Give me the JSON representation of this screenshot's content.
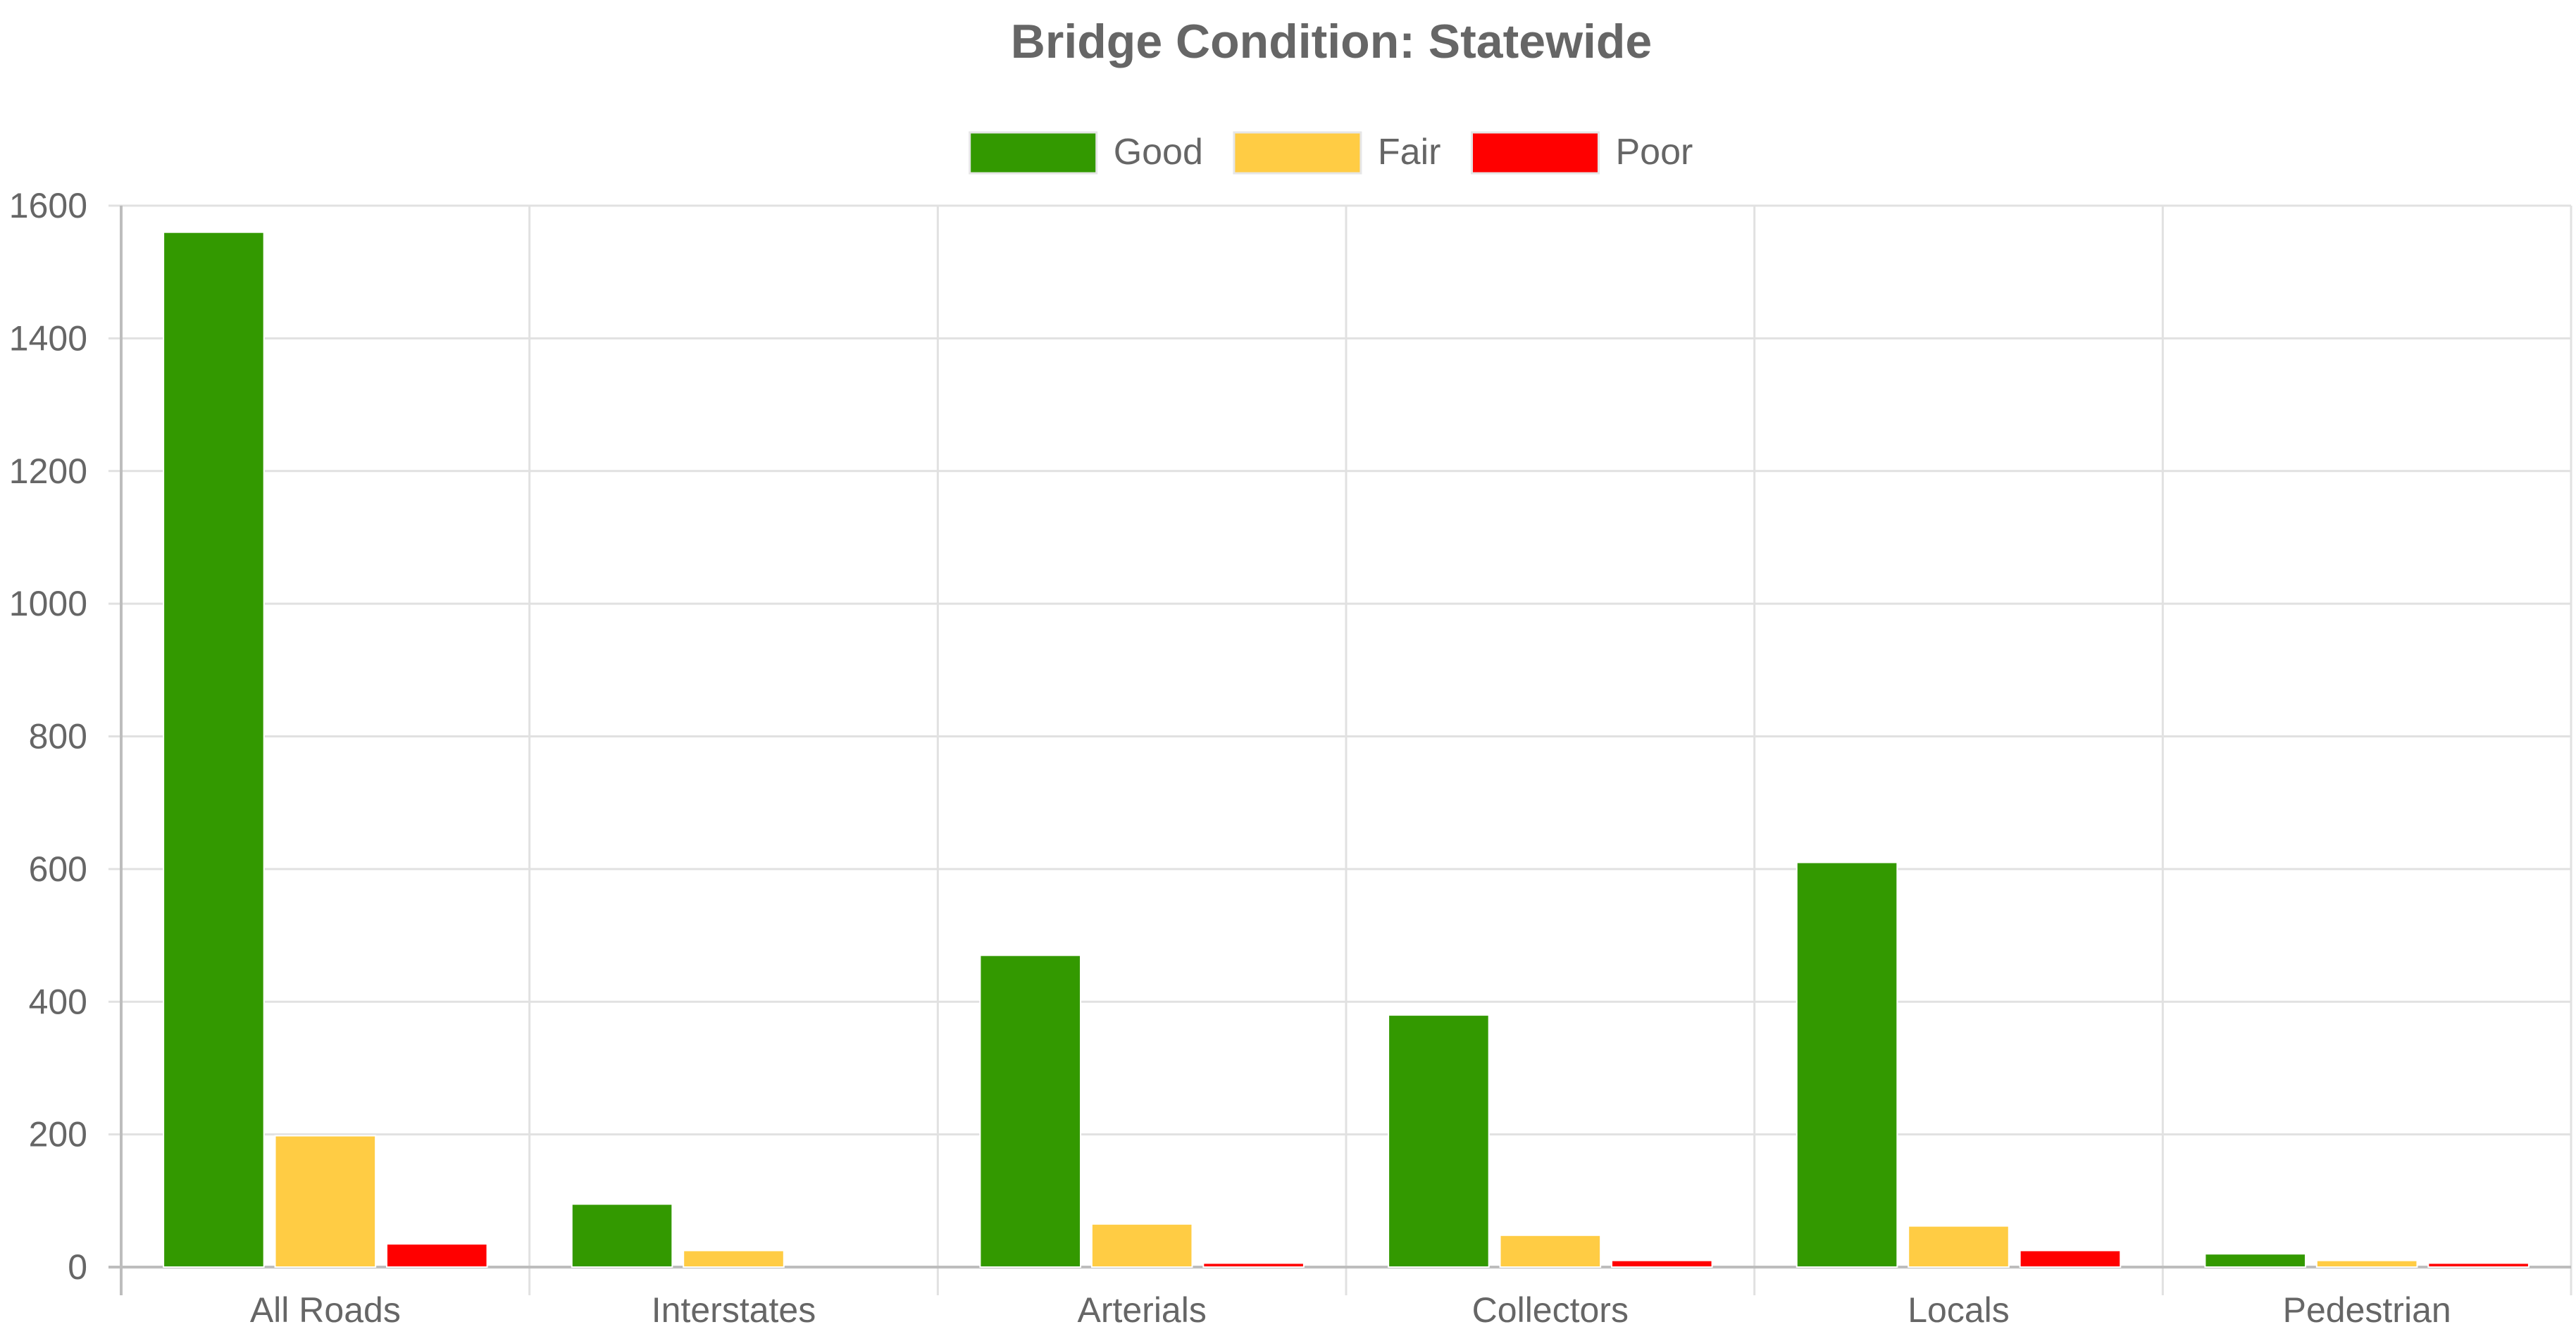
{
  "chart_data": {
    "type": "bar",
    "title": "Bridge Condition: Statewide",
    "xlabel": "",
    "ylabel": "",
    "categories": [
      "All Roads",
      "Interstates",
      "Arterials",
      "Collectors",
      "Locals",
      "Pedestrian"
    ],
    "series": [
      {
        "name": "Good",
        "color": "#339900",
        "values": [
          1560,
          95,
          470,
          380,
          610,
          20
        ]
      },
      {
        "name": "Fair",
        "color": "#ffcc44",
        "values": [
          198,
          25,
          65,
          48,
          62,
          10
        ]
      },
      {
        "name": "Poor",
        "color": "#ff0000",
        "values": [
          35,
          0,
          6,
          10,
          25,
          6
        ]
      }
    ],
    "ylim": [
      0,
      1600
    ],
    "yticks": [
      0,
      200,
      400,
      600,
      800,
      1000,
      1200,
      1400,
      1600
    ],
    "grid": true,
    "legend_position": "top-center"
  }
}
